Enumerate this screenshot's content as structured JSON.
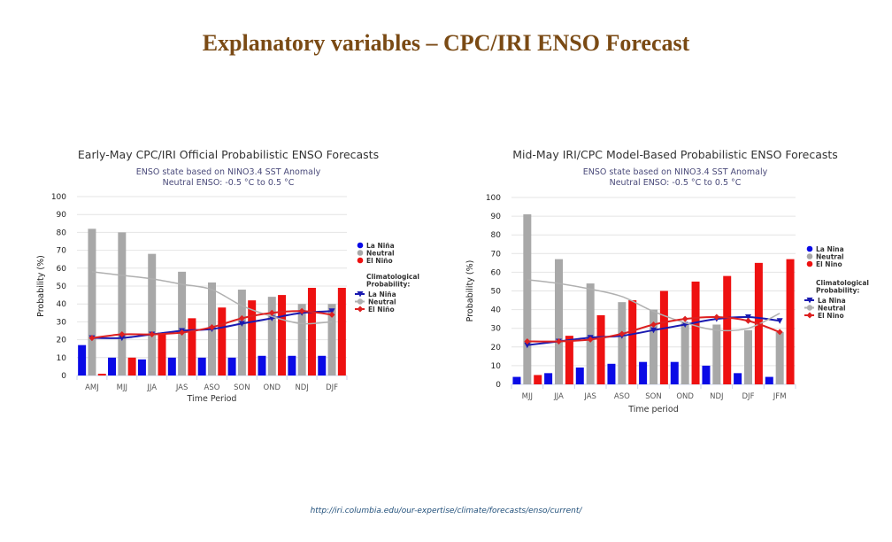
{
  "slide": {
    "title": "Explanatory variables – CPC/IRI ENSO Forecast",
    "source_url": "http://iri.columbia.edu/our-expertise/climate/forecasts/enso/current/"
  },
  "colors": {
    "la_nina": "#0a0ae6",
    "neutral": "#a8a8a8",
    "el_nino": "#ee1111",
    "clim_la_nina": "#1a1ab0",
    "clim_neutral": "#b0b0b0",
    "clim_el_nino": "#dd2020"
  },
  "chart_data": [
    {
      "type": "bar",
      "title": "Early-May CPC/IRI Official Probabilistic ENSO Forecasts",
      "subtitle": [
        "ENSO state based on NINO3.4 SST Anomaly",
        "Neutral ENSO: -0.5 °C to 0.5 °C"
      ],
      "xlabel": "Time Period",
      "ylabel": "Probability (%)",
      "ylim": [
        0,
        100
      ],
      "yticks": [
        "0",
        "10",
        "20",
        "30",
        "40",
        "50",
        "60",
        "70",
        "80",
        "90",
        "100"
      ],
      "grid": true,
      "legend_position": "right",
      "categories": [
        "AMJ",
        "MJJ",
        "JJA",
        "JAS",
        "ASO",
        "SON",
        "OND",
        "NDJ",
        "DJF"
      ],
      "series": [
        {
          "name": "La Niña",
          "kind": "bar",
          "values": [
            17,
            10,
            9,
            10,
            10,
            10,
            11,
            11,
            11
          ]
        },
        {
          "name": "Neutral",
          "kind": "bar",
          "values": [
            82,
            80,
            68,
            58,
            52,
            48,
            44,
            40,
            40
          ]
        },
        {
          "name": "El Niño",
          "kind": "bar",
          "values": [
            1,
            10,
            24,
            32,
            38,
            42,
            45,
            49,
            49
          ]
        }
      ],
      "climatology_label": [
        "Climatological",
        "Probability:"
      ],
      "climatology": [
        {
          "name": "La Niña",
          "marker": "triangle-down",
          "values": [
            21,
            21,
            23,
            25,
            26,
            29,
            32,
            35,
            36
          ]
        },
        {
          "name": "Neutral",
          "marker": "circle",
          "values": [
            58,
            56,
            54,
            51,
            48,
            39,
            33,
            29,
            30
          ]
        },
        {
          "name": "El Niño",
          "marker": "diamond",
          "values": [
            21,
            23,
            23,
            24,
            27,
            32,
            35,
            36,
            34
          ]
        }
      ]
    },
    {
      "type": "bar",
      "title": "Mid-May IRI/CPC Model-Based Probabilistic ENSO Forecasts",
      "subtitle": [
        "ENSO state based on NINO3.4 SST Anomaly",
        "Neutral ENSO: -0.5 °C to 0.5 °C"
      ],
      "xlabel": "Time period",
      "ylabel": "Probability (%)",
      "ylim": [
        0,
        100
      ],
      "yticks": [
        "0",
        "10",
        "20",
        "30",
        "40",
        "50",
        "60",
        "70",
        "80",
        "90",
        "100"
      ],
      "grid": true,
      "legend_position": "right",
      "categories": [
        "MJJ",
        "JJA",
        "JAS",
        "ASO",
        "SON",
        "OND",
        "NDJ",
        "DJF",
        "JFM"
      ],
      "series": [
        {
          "name": "La Nina",
          "kind": "bar",
          "values": [
            4,
            6,
            9,
            11,
            12,
            12,
            10,
            6,
            4
          ]
        },
        {
          "name": "Neutral",
          "kind": "bar",
          "values": [
            91,
            67,
            54,
            44,
            40,
            33,
            32,
            29,
            28
          ]
        },
        {
          "name": "El Nino",
          "kind": "bar",
          "values": [
            5,
            26,
            37,
            45,
            50,
            55,
            58,
            65,
            67
          ]
        }
      ],
      "climatology_label": [
        "Climatological",
        "Probability:"
      ],
      "climatology": [
        {
          "name": "La Nina",
          "marker": "triangle-down",
          "values": [
            21,
            23,
            25,
            26,
            29,
            32,
            35,
            36,
            34
          ]
        },
        {
          "name": "Neutral",
          "marker": "circle",
          "values": [
            56,
            54,
            51,
            47,
            39,
            33,
            29,
            30,
            38
          ]
        },
        {
          "name": "El Nino",
          "marker": "diamond",
          "values": [
            23,
            23,
            24,
            27,
            32,
            35,
            36,
            34,
            28
          ]
        }
      ]
    }
  ]
}
